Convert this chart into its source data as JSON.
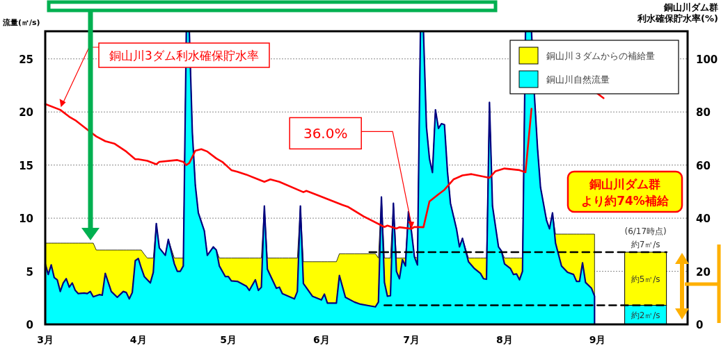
{
  "chart_data": {
    "type": "area",
    "stacked": true,
    "grid": "y",
    "legend": "top right",
    "ylabel": "流量(㎥/s)",
    "y2label": "銅山川ダム群利水確保貯水率(%)",
    "xlim": [
      "--03-01",
      "--10-01"
    ],
    "xticks": [
      {
        "value": "--03-01",
        "label": "3月"
      },
      {
        "value": "--04-01",
        "label": "4月"
      },
      {
        "value": "--05-01",
        "label": "5月"
      },
      {
        "value": "--06-01",
        "label": "6月"
      },
      {
        "value": "--07-01",
        "label": "7月"
      },
      {
        "value": "--08-01",
        "label": "8月"
      },
      {
        "value": "--09-01",
        "label": "9月"
      }
    ],
    "ylim": [
      0,
      27.6
    ],
    "yticks": [
      0,
      5,
      10,
      15,
      20,
      25
    ],
    "y2lim": [
      0,
      110.4
    ],
    "y2ticks": [
      0,
      20,
      40,
      60,
      80,
      100
    ],
    "x": [
      "--03-01",
      "--03-02",
      "--03-03",
      "--03-04",
      "--03-05",
      "--03-06",
      "--03-07",
      "--03-08",
      "--03-09",
      "--03-10",
      "--03-11",
      "--03-12",
      "--03-14",
      "--03-15",
      "--03-16",
      "--03-17",
      "--03-18",
      "--03-19",
      "--03-20",
      "--03-21",
      "--03-23",
      "--03-25",
      "--03-27",
      "--03-28",
      "--03-29",
      "--03-30",
      "--03-31",
      "--04-01",
      "--04-02",
      "--04-03",
      "--04-04",
      "--04-05",
      "--04-06",
      "--04-07",
      "--04-08",
      "--04-10",
      "--04-11",
      "--04-13",
      "--04-14",
      "--04-15",
      "--04-16",
      "--04-17",
      "--04-18",
      "--04-19",
      "--04-20",
      "--04-21",
      "--04-23",
      "--04-24",
      "--04-26",
      "--04-27",
      "--04-28",
      "--04-30",
      "--05-01",
      "--05-02",
      "--05-04",
      "--05-07",
      "--05-08",
      "--05-10",
      "--05-11",
      "--05-12",
      "--05-13",
      "--05-14",
      "--05-17",
      "--05-18",
      "--05-19",
      "--05-21",
      "--05-23",
      "--05-24",
      "--05-25",
      "--05-26",
      "--05-29",
      "--06-01",
      "--06-02",
      "--06-03",
      "--06-06",
      "--06-07",
      "--06-09",
      "--06-12",
      "--06-14",
      "--06-17",
      "--06-19",
      "--06-20",
      "--06-21",
      "--06-22",
      "--06-23",
      "--06-24",
      "--06-25",
      "--06-26",
      "--06-27",
      "--06-28",
      "--06-29",
      "--06-30",
      "--07-01",
      "--07-02",
      "--07-03",
      "--07-04",
      "--07-05",
      "--07-06",
      "--07-07",
      "--07-08",
      "--07-09",
      "--07-10",
      "--07-11",
      "--07-12",
      "--07-13",
      "--07-14",
      "--07-16",
      "--07-17",
      "--07-18",
      "--07-20",
      "--07-22",
      "--07-24",
      "--07-25",
      "--07-26",
      "--07-27",
      "--07-28",
      "--07-30",
      "--07-31",
      "--08-01",
      "--08-03",
      "--08-04",
      "--08-05",
      "--08-06",
      "--08-07",
      "--08-08",
      "--08-09",
      "--08-10",
      "--08-11",
      "--08-12",
      "--08-13",
      "--08-15",
      "--08-16",
      "--08-17",
      "--08-18",
      "--08-20",
      "--08-22",
      "--08-24",
      "--08-25",
      "--08-26",
      "--08-27",
      "--08-28",
      "--08-30",
      "--08-31"
    ],
    "series": [
      {
        "name": "銅山川自然流量",
        "color": "#00ffff",
        "values": [
          5.7,
          4.7,
          5.6,
          4.4,
          4.2,
          3.1,
          3.9,
          4.3,
          3.5,
          3.9,
          3.2,
          2.9,
          2.95,
          2.9,
          3.1,
          2.6,
          2.7,
          2.8,
          2.75,
          4.8,
          3.1,
          2.55,
          3.1,
          3.0,
          2.4,
          3.0,
          6.0,
          6.2,
          5.3,
          4.5,
          4.2,
          3.9,
          4.9,
          9.5,
          7.2,
          6.5,
          8.0,
          5.7,
          5.0,
          5.0,
          5.5,
          27.6,
          27.6,
          18.1,
          13.1,
          10.5,
          8.8,
          6.5,
          7.3,
          7.0,
          5.5,
          4.5,
          4.5,
          4.1,
          4.05,
          3.6,
          3.2,
          4.2,
          3.2,
          3.5,
          11.15,
          5.2,
          3.4,
          3.5,
          2.9,
          2.65,
          2.4,
          3.1,
          11.15,
          3.85,
          2.65,
          2.3,
          2.85,
          2.0,
          2.0,
          4.6,
          2.55,
          2.1,
          1.9,
          1.75,
          1.65,
          2.1,
          12.0,
          3.95,
          2.65,
          2.7,
          11.4,
          5.0,
          4.3,
          6.1,
          5.5,
          10.6,
          8.75,
          6.35,
          5.6,
          27.6,
          27.6,
          18.6,
          15.6,
          14.3,
          20.2,
          18.45,
          18.9,
          18.8,
          14.4,
          11.4,
          9.0,
          7.3,
          8.1,
          5.9,
          5.25,
          4.8,
          4.3,
          4.25,
          20.9,
          11.15,
          7.3,
          6.9,
          5.7,
          5.25,
          4.7,
          4.75,
          4.2,
          5.0,
          27.6,
          27.6,
          27.6,
          21.4,
          16.6,
          12.9,
          9.8,
          9.0,
          10.5,
          7.65,
          5.5,
          4.9,
          4.7,
          4.05,
          4.05,
          5.8,
          3.95,
          3.4,
          2.65
        ]
      },
      {
        "name": "銅山川３ダムからの補給量",
        "color": "#ffff00",
        "values": [
          1.95,
          2.95,
          2.05,
          3.25,
          3.45,
          4.55,
          3.75,
          3.35,
          4.15,
          3.75,
          4.45,
          4.75,
          4.7,
          4.75,
          4.55,
          5.05,
          4.3,
          4.2,
          4.25,
          2.2,
          3.9,
          4.45,
          3.9,
          4.0,
          4.6,
          4.0,
          1.0,
          0.8,
          1.7,
          2.1,
          2.05,
          2.35,
          1.35,
          0,
          0,
          0,
          0,
          0.55,
          1.25,
          1.25,
          0.75,
          0,
          0,
          0,
          0,
          0,
          0,
          0,
          0,
          0,
          0.75,
          1.75,
          1.75,
          2.15,
          2.2,
          2.65,
          3.05,
          2.05,
          3.05,
          2.75,
          0,
          1.05,
          2.85,
          2.75,
          3.35,
          3.6,
          3.85,
          3.15,
          0,
          2.05,
          3.25,
          3.6,
          3.05,
          3.9,
          3.9,
          2.05,
          4.1,
          4.55,
          4.75,
          4.9,
          5.0,
          4.15,
          0,
          2.3,
          3.6,
          3.55,
          0,
          1.25,
          1.95,
          0.15,
          0.75,
          0,
          0,
          0,
          0.65,
          0,
          0,
          0,
          0,
          0,
          0,
          0,
          0,
          0,
          0,
          0,
          0,
          0,
          0,
          0.35,
          1.0,
          1.45,
          1.95,
          2.0,
          0,
          0,
          0,
          0,
          0.55,
          1.0,
          1.55,
          1.5,
          2.05,
          1.25,
          0,
          0,
          0,
          0,
          0,
          0,
          0,
          0,
          0,
          0.85,
          3.0,
          3.6,
          3.8,
          4.45,
          4.45,
          2.7,
          4.55,
          5.1,
          5.85
        ]
      },
      {
        "type": "bar",
        "color": "#00ffff",
        "x": [
          "--09-17"
        ],
        "values": [
          1.8
        ],
        "value_labels": [
          "約2㎥/s"
        ]
      },
      {
        "type": "bar",
        "color": "#ffff00",
        "x": [
          "--09-17"
        ],
        "values": [
          5.0
        ],
        "value_labels": [
          "約5㎥/s"
        ]
      },
      {
        "type": "line",
        "color": "#000000",
        "line_style": "dashed",
        "x": [
          "--06-17",
          "--09-24"
        ],
        "values": [
          6.8,
          6.8
        ]
      },
      {
        "type": "line",
        "color": "#000000",
        "line_style": "dashed",
        "x": [
          "--06-22",
          "--09-24"
        ],
        "values": [
          1.8,
          1.8
        ]
      },
      {
        "name": "銅山川3ダム利水確保貯水率",
        "type": "line",
        "axis": "y2",
        "color": "#ff0000",
        "x": [
          "--03-01",
          "--03-06",
          "--03-09",
          "--03-11",
          "--03-15",
          "--03-18",
          "--03-21",
          "--03-24",
          "--03-28",
          "--03-31",
          "--04-01",
          "--04-04",
          "--04-07",
          "--04-08",
          "--04-14",
          "--04-16",
          "--04-17",
          "--04-18",
          "--04-20",
          "--04-22",
          "--04-24",
          "--04-27",
          "--04-29",
          "--05-02",
          "--05-04",
          "--05-07",
          "--05-13",
          "--05-15",
          "--05-18",
          "--05-26",
          "--05-27",
          "--05-30",
          "--06-08",
          "--06-10",
          "--06-15",
          "--06-22",
          "--06-23",
          "--06-26",
          "--06-27",
          "--07-01",
          "--07-02",
          "--07-05",
          "--07-07",
          "--07-10",
          "--07-12",
          "--07-15",
          "--07-18",
          "--07-21",
          "--07-27",
          "--07-29",
          "--08-01",
          "--08-06",
          "--08-08",
          "--08-10",
          "--08-11",
          "--08-20",
          "--09-01",
          "--09-03"
        ],
        "values": [
          83.0,
          80.8,
          78.2,
          76.9,
          73.4,
          70.8,
          69.0,
          68.1,
          65.1,
          62.2,
          62.2,
          61.6,
          60.3,
          61.2,
          61.9,
          61.2,
          60.0,
          60.8,
          65.4,
          66.0,
          65.1,
          62.5,
          61.2,
          58.1,
          57.5,
          56.4,
          53.7,
          54.6,
          53.7,
          49.8,
          50.3,
          49.0,
          45.0,
          44.2,
          40.7,
          36.7,
          37.2,
          36.1,
          36.6,
          36.0,
          36.7,
          36.6,
          46.3,
          49.0,
          50.7,
          54.6,
          56.1,
          56.6,
          55.2,
          57.7,
          58.7,
          58.1,
          57.3,
          81.2,
          null,
          null,
          86.9,
          85.2
        ]
      }
    ],
    "annotations": [
      {
        "text": "36.0%",
        "x": "--07-01",
        "y": 9.0
      },
      "銅山川ダム群より約74%補給",
      {
        "text": "(6/17時点)",
        "x": "--09-17",
        "y": 6.8
      },
      {
        "text": "約7㎥/s",
        "x": "--09-17",
        "y": 6.8
      }
    ]
  }
}
